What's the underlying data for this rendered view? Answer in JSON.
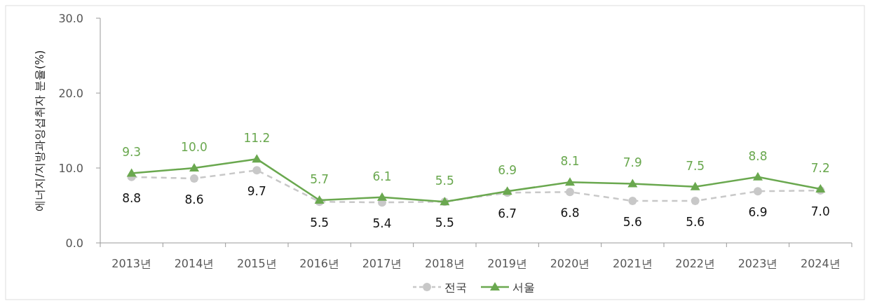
{
  "chart_data": {
    "type": "line",
    "ylabel": "에너지/지방과잉섭취자 분율(%)",
    "categories": [
      "2013년",
      "2014년",
      "2015년",
      "2016년",
      "2017년",
      "2018년",
      "2019년",
      "2020년",
      "2021년",
      "2022년",
      "2023년",
      "2024년"
    ],
    "series": [
      {
        "name": "전국",
        "color": "#c8c8c8",
        "marker": "circle",
        "line_style": "dashed",
        "values": [
          8.8,
          8.6,
          9.7,
          5.5,
          5.4,
          5.5,
          6.7,
          6.8,
          5.6,
          5.6,
          6.9,
          7.0
        ],
        "value_labels": [
          "8.8",
          "8.6",
          "9.7",
          "5.5",
          "5.4",
          "5.5",
          "6.7",
          "6.8",
          "5.6",
          "5.6",
          "6.9",
          "7.0"
        ]
      },
      {
        "name": "서울",
        "color": "#6aa84f",
        "marker": "triangle",
        "line_style": "solid",
        "values": [
          9.3,
          10.0,
          11.2,
          5.7,
          6.1,
          5.5,
          6.9,
          8.1,
          7.9,
          7.5,
          8.8,
          7.2
        ],
        "value_labels": [
          "9.3",
          "10.0",
          "11.2",
          "5.7",
          "6.1",
          "5.5",
          "6.9",
          "8.1",
          "7.9",
          "7.5",
          "8.8",
          "7.2"
        ]
      }
    ],
    "ylim": [
      0,
      30
    ],
    "yticks": [
      {
        "value": 0,
        "label": "0.0"
      },
      {
        "value": 10,
        "label": "10.0"
      },
      {
        "value": 20,
        "label": "20.0"
      },
      {
        "value": 30,
        "label": "30.0"
      }
    ],
    "grid": false,
    "legend": "bottom"
  }
}
